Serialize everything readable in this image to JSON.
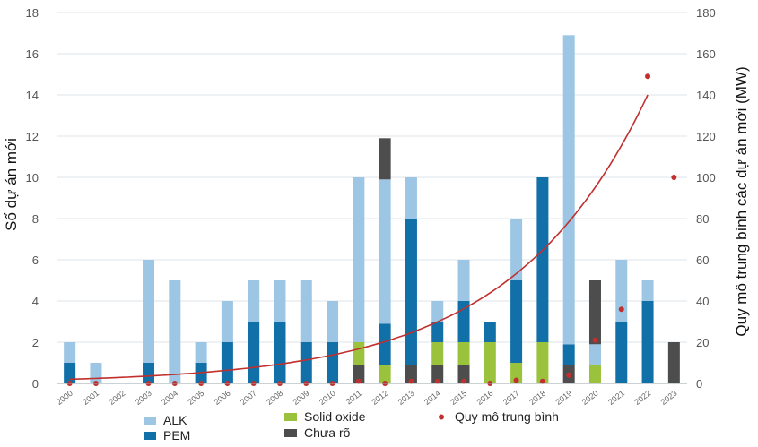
{
  "chart_data": {
    "type": "bar",
    "stacked": true,
    "categories": [
      "2000",
      "2001",
      "2002",
      "2003",
      "2004",
      "2005",
      "2006",
      "2007",
      "2008",
      "2009",
      "2010",
      "2011",
      "2012",
      "2013",
      "2014",
      "2015",
      "2016",
      "2017",
      "2018",
      "2019",
      "2020",
      "2021",
      "2022",
      "2023"
    ],
    "series": [
      {
        "name": "Chưa rõ",
        "color": "#4d4d4d",
        "values": [
          0,
          0,
          0,
          0,
          0,
          0,
          0,
          0,
          0,
          0,
          0,
          0.9,
          0,
          0.9,
          0.9,
          0.9,
          0,
          0,
          0,
          0.9,
          0,
          0,
          0,
          2
        ]
      },
      {
        "name": "Solid oxide",
        "color": "#9bc23d",
        "values": [
          0,
          0,
          0,
          0,
          0,
          0,
          0,
          0,
          0,
          0,
          0,
          1.1,
          0.9,
          0,
          1.1,
          1.1,
          2,
          1,
          2,
          0,
          0.9,
          0,
          0,
          0
        ]
      },
      {
        "name": "PEM",
        "color": "#1170a8",
        "values": [
          1,
          0,
          0,
          1,
          0,
          1,
          2,
          3,
          3,
          2,
          2,
          0,
          2,
          7.1,
          1,
          2,
          1,
          4,
          8,
          1,
          0,
          3,
          4,
          0
        ]
      },
      {
        "name": "ALK",
        "color": "#9dc6e4",
        "values": [
          1,
          1,
          0,
          5,
          5,
          1,
          2,
          2,
          2,
          3,
          2,
          8,
          7,
          2,
          1,
          2,
          0,
          3,
          0,
          15,
          1,
          3,
          1,
          0
        ]
      },
      {
        "name": "Chưa rõ (top)",
        "color": "#4d4d4d",
        "values": [
          0,
          0,
          0,
          0,
          0,
          0,
          0,
          0,
          0,
          0,
          0,
          0,
          2,
          0,
          0,
          0,
          0,
          0,
          0,
          0,
          3.1,
          0,
          0,
          0
        ]
      }
    ],
    "avg_scale": {
      "name": "Quy mô trung bình",
      "color": "#c0302e",
      "values": [
        0,
        0,
        0,
        0,
        0,
        0,
        0,
        0,
        0,
        0,
        0,
        1,
        0,
        1,
        1,
        1,
        0,
        1.5,
        1,
        4,
        21,
        36,
        149,
        100
      ]
    },
    "trend": {
      "color": "#c0302e",
      "x_from": "2000",
      "x_to": "2022",
      "y_start": 2,
      "y_end": 140
    },
    "ylabel_left": "Số dự án mới",
    "ylabel_right": "Quy mô trung bình các dự án mới (MW)",
    "ylim_left": [
      0,
      18
    ],
    "ylim_right": [
      0,
      180
    ],
    "yticks_left": [
      "0",
      "2",
      "4",
      "6",
      "8",
      "10",
      "12",
      "14",
      "16",
      "18"
    ],
    "yticks_right": [
      "0",
      "20",
      "40",
      "60",
      "80",
      "100",
      "120",
      "140",
      "160",
      "180"
    ],
    "grid": true,
    "legend": {
      "position": "bottom",
      "items": [
        {
          "label": "ALK",
          "color": "#9dc6e4",
          "kind": "box"
        },
        {
          "label": "PEM",
          "color": "#1170a8",
          "kind": "box"
        },
        {
          "label": "Solid oxide",
          "color": "#9bc23d",
          "kind": "box"
        },
        {
          "label": "Chưa rõ",
          "color": "#4d4d4d",
          "kind": "box"
        },
        {
          "label": "Quy mô trung bình",
          "color": "#c0302e",
          "kind": "dot"
        }
      ]
    }
  }
}
